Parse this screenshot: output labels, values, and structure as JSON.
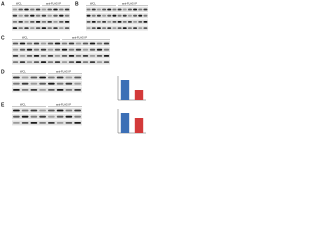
{
  "figure": {
    "panels": [
      {
        "label": "A",
        "headers": [
          "WCL",
          "anti-FLAG IP"
        ]
      },
      {
        "label": "B",
        "headers": [
          "WCL",
          "anti-FLAG IP"
        ]
      },
      {
        "label": "C",
        "headers": [
          "WCL",
          "anti-FLAG IP"
        ]
      },
      {
        "label": "D",
        "headers": [
          "WCL",
          "anti-FLAG IP"
        ]
      },
      {
        "label": "E",
        "headers": [
          "WCL",
          "anti-FLAG IP"
        ]
      }
    ]
  },
  "chart_data": [
    {
      "type": "bar",
      "categories": [
        null,
        null
      ],
      "values": [
        1.0,
        0.5
      ],
      "colors": [
        "#3b6fb6",
        "#d33a3a"
      ],
      "ylim": [
        0,
        1.2
      ]
    },
    {
      "type": "bar",
      "categories": [
        null,
        null
      ],
      "values": [
        1.0,
        0.75
      ],
      "colors": [
        "#3b6fb6",
        "#d33a3a"
      ],
      "ylim": [
        0,
        1.2
      ]
    }
  ]
}
